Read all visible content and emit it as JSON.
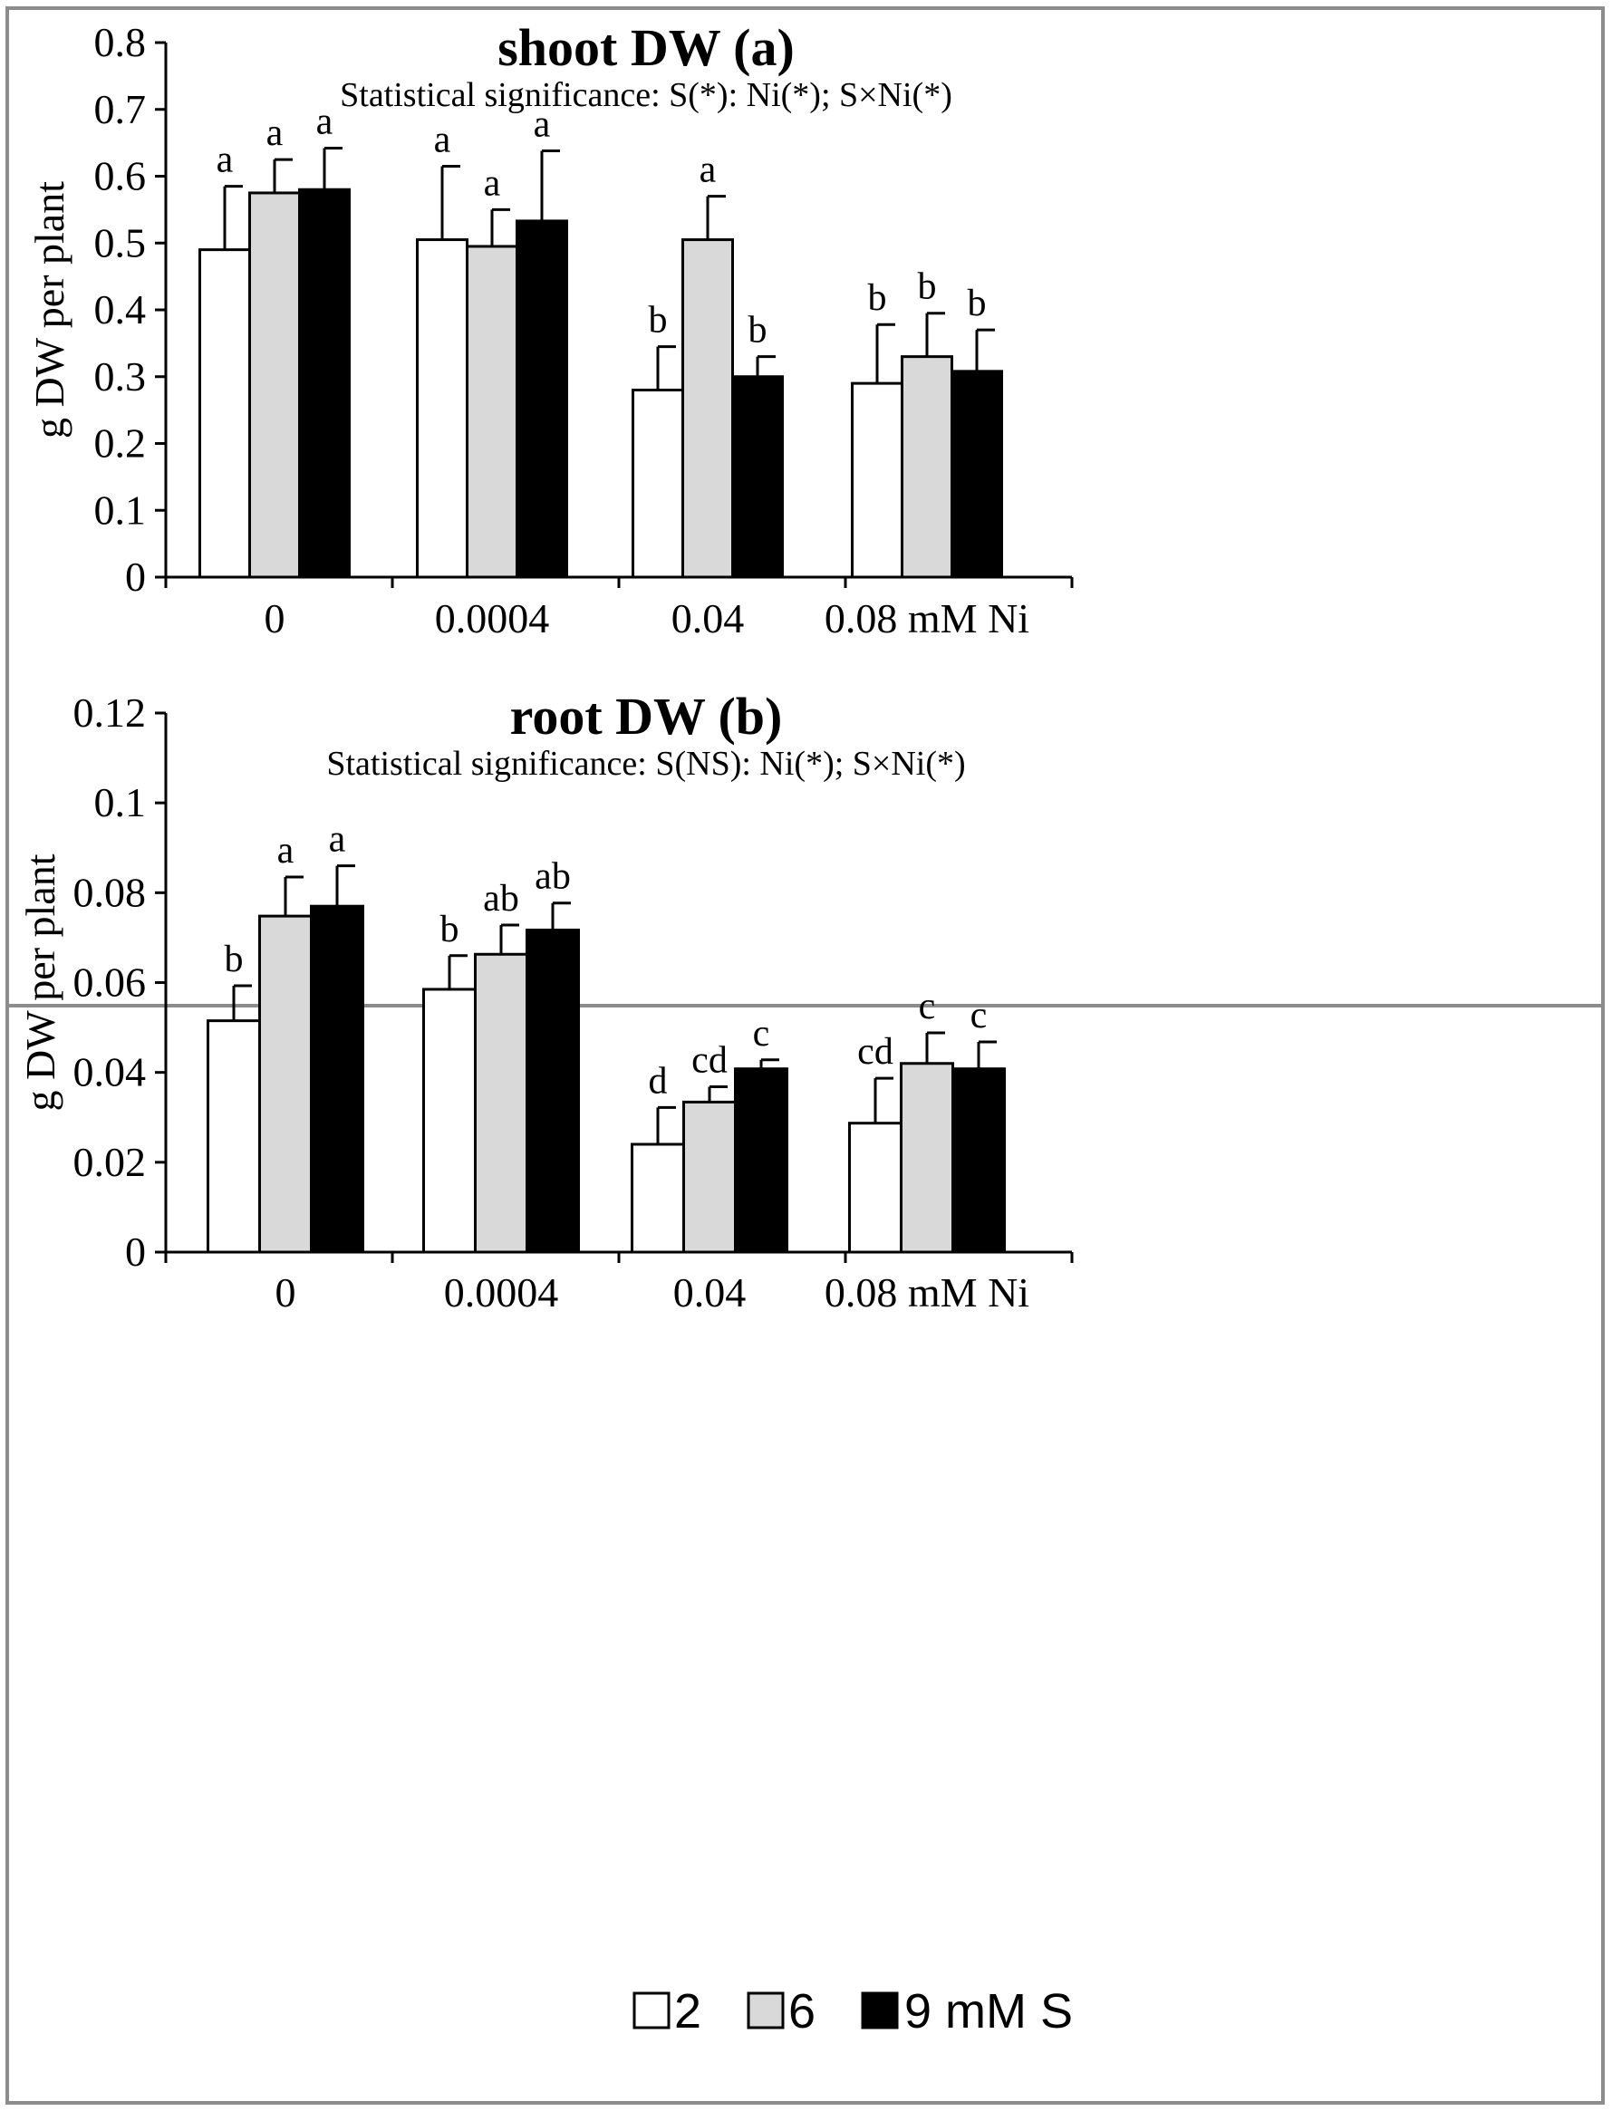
{
  "legend": {
    "items": [
      {
        "label": "2",
        "color": "#ffffff"
      },
      {
        "label": "6",
        "color": "#d9d9d9"
      },
      {
        "label": "9 mM S",
        "color": "#000000"
      }
    ]
  },
  "chart_data": [
    {
      "type": "bar",
      "title": "shoot DW (a)",
      "subtitle": "Statistical significance: S(*): Ni(*); S×Ni(*)",
      "xlabel": "",
      "ylabel": "g DW per plant",
      "categories": [
        "0",
        "0.0004",
        "0.04",
        "0.08 mM Ni"
      ],
      "ylim": [
        0,
        0.8
      ],
      "yticks": [
        0,
        0.1,
        0.2,
        0.3,
        0.4,
        0.5,
        0.6,
        0.7,
        0.8
      ],
      "ytick_labels": [
        "0",
        "0.1",
        "0.2",
        "0.3",
        "0.4",
        "0.5",
        "0.6",
        "0.7",
        "0.8"
      ],
      "series": [
        {
          "name": "2",
          "color": "#ffffff",
          "values": [
            0.49,
            0.505,
            0.28,
            0.29
          ],
          "errors": [
            0.095,
            0.11,
            0.065,
            0.088
          ],
          "letters": [
            "a",
            "a",
            "b",
            "b"
          ]
        },
        {
          "name": "6",
          "color": "#d9d9d9",
          "values": [
            0.575,
            0.495,
            0.505,
            0.33
          ],
          "errors": [
            0.05,
            0.055,
            0.065,
            0.065
          ],
          "letters": [
            "a",
            "a",
            "a",
            "b"
          ]
        },
        {
          "name": "9 mM S",
          "color": "#000000",
          "values": [
            0.58,
            0.533,
            0.3,
            0.308
          ],
          "errors": [
            0.062,
            0.105,
            0.03,
            0.062
          ],
          "letters": [
            "a",
            "a",
            "b",
            "b"
          ]
        }
      ]
    },
    {
      "type": "bar",
      "title": "root DW (b)",
      "subtitle": "Statistical significance: S(NS): Ni(*); S×Ni(*)",
      "xlabel": "",
      "ylabel": "g DW per plant",
      "categories": [
        "0",
        "0.0004",
        "0.04",
        "0.08 mM Ni"
      ],
      "ylim": [
        0,
        0.12
      ],
      "yticks": [
        0,
        0.02,
        0.04,
        0.06,
        0.08,
        0.1,
        0.12
      ],
      "ytick_labels": [
        "0",
        "0.02",
        "0.04",
        "0.06",
        "0.08",
        "0.1",
        "0.12"
      ],
      "series": [
        {
          "name": "2",
          "color": "#ffffff",
          "values": [
            0.0515,
            0.0585,
            0.024,
            0.0287
          ],
          "errors": [
            0.0078,
            0.0075,
            0.0082,
            0.01
          ],
          "letters": [
            "b",
            "b",
            "d",
            "cd"
          ]
        },
        {
          "name": "6",
          "color": "#d9d9d9",
          "values": [
            0.0748,
            0.0663,
            0.0334,
            0.042
          ],
          "errors": [
            0.0087,
            0.0065,
            0.0034,
            0.0068
          ],
          "letters": [
            "a",
            "ab",
            "cd",
            "c"
          ]
        },
        {
          "name": "9 mM S",
          "color": "#000000",
          "values": [
            0.077,
            0.0717,
            0.0408,
            0.0408
          ],
          "errors": [
            0.009,
            0.006,
            0.002,
            0.006
          ],
          "letters": [
            "a",
            "ab",
            "c",
            "c"
          ]
        }
      ]
    }
  ]
}
